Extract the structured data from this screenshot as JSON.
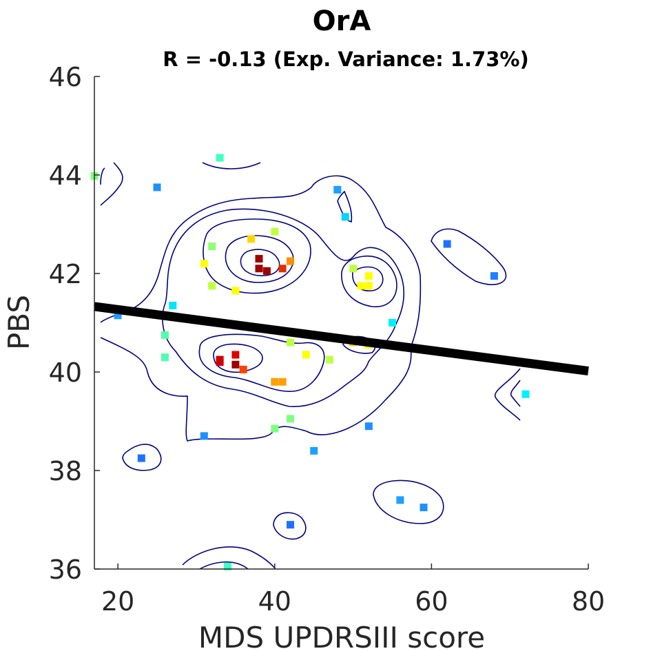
{
  "chart_data": {
    "type": "scatter",
    "title": "OrA",
    "subtitle": "R = -0.13 (Exp. Variance: 1.73%)",
    "xlabel": "MDS UPDRSIII score",
    "ylabel": "PBS",
    "xlim": [
      17,
      80
    ],
    "ylim": [
      36,
      46
    ],
    "xticks": [
      "20",
      "40",
      "60",
      "80"
    ],
    "yticks": [
      "36",
      "38",
      "40",
      "42",
      "44",
      "46"
    ],
    "fit_line": {
      "x": [
        17,
        80
      ],
      "y": [
        41.33,
        40.02
      ],
      "color": "#000000"
    },
    "points": [
      {
        "x": 17,
        "y": 43.98,
        "color": "#7fff7f"
      },
      {
        "x": 25,
        "y": 43.75,
        "color": "#1e90ff"
      },
      {
        "x": 33,
        "y": 44.35,
        "color": "#40ffbf"
      },
      {
        "x": 48,
        "y": 43.7,
        "color": "#1ea0ff"
      },
      {
        "x": 49,
        "y": 43.15,
        "color": "#00d4ff"
      },
      {
        "x": 62,
        "y": 42.6,
        "color": "#1e6fff"
      },
      {
        "x": 68,
        "y": 41.95,
        "color": "#1e7fff"
      },
      {
        "x": 32,
        "y": 42.55,
        "color": "#8fff6f"
      },
      {
        "x": 37,
        "y": 42.7,
        "color": "#ffd700"
      },
      {
        "x": 40,
        "y": 42.85,
        "color": "#bfff3f"
      },
      {
        "x": 31,
        "y": 42.2,
        "color": "#ffff00"
      },
      {
        "x": 38,
        "y": 42.3,
        "color": "#a00000"
      },
      {
        "x": 38,
        "y": 42.1,
        "color": "#a00000"
      },
      {
        "x": 39,
        "y": 42.05,
        "color": "#a00000"
      },
      {
        "x": 41,
        "y": 42.1,
        "color": "#e03000"
      },
      {
        "x": 42,
        "y": 42.25,
        "color": "#ff9000"
      },
      {
        "x": 32,
        "y": 41.75,
        "color": "#bfff3f"
      },
      {
        "x": 35,
        "y": 41.65,
        "color": "#ffff00"
      },
      {
        "x": 50,
        "y": 42.1,
        "color": "#bfff3f"
      },
      {
        "x": 51,
        "y": 41.75,
        "color": "#ffff00"
      },
      {
        "x": 52,
        "y": 41.75,
        "color": "#ffff00"
      },
      {
        "x": 52,
        "y": 41.95,
        "color": "#ffff00"
      },
      {
        "x": 20,
        "y": 41.15,
        "color": "#1ea0ff"
      },
      {
        "x": 27,
        "y": 41.35,
        "color": "#00e5ff"
      },
      {
        "x": 55,
        "y": 41.0,
        "color": "#00f0ff"
      },
      {
        "x": 26,
        "y": 40.75,
        "color": "#4fffaf"
      },
      {
        "x": 26,
        "y": 40.3,
        "color": "#4fffaf"
      },
      {
        "x": 42,
        "y": 40.6,
        "color": "#bfff3f"
      },
      {
        "x": 44,
        "y": 40.35,
        "color": "#ffff00"
      },
      {
        "x": 47,
        "y": 40.25,
        "color": "#bfff3f"
      },
      {
        "x": 50,
        "y": 40.6,
        "color": "#ffd000"
      },
      {
        "x": 52,
        "y": 40.55,
        "color": "#ffff00"
      },
      {
        "x": 33,
        "y": 40.25,
        "color": "#d00000"
      },
      {
        "x": 33,
        "y": 40.2,
        "color": "#d00000"
      },
      {
        "x": 35,
        "y": 40.35,
        "color": "#e00000"
      },
      {
        "x": 35,
        "y": 40.15,
        "color": "#a00000"
      },
      {
        "x": 36,
        "y": 40.05,
        "color": "#ff4000"
      },
      {
        "x": 40,
        "y": 39.8,
        "color": "#ffa000"
      },
      {
        "x": 41,
        "y": 39.8,
        "color": "#ffa000"
      },
      {
        "x": 72,
        "y": 39.55,
        "color": "#00f0ff"
      },
      {
        "x": 42,
        "y": 39.05,
        "color": "#7fff7f"
      },
      {
        "x": 40,
        "y": 38.85,
        "color": "#7fff7f"
      },
      {
        "x": 31,
        "y": 38.7,
        "color": "#1e90ff"
      },
      {
        "x": 52,
        "y": 38.9,
        "color": "#1e90ff"
      },
      {
        "x": 45,
        "y": 38.4,
        "color": "#1ea0ff"
      },
      {
        "x": 23,
        "y": 38.25,
        "color": "#1e6fff"
      },
      {
        "x": 56,
        "y": 37.4,
        "color": "#1ea0ff"
      },
      {
        "x": 59,
        "y": 37.25,
        "color": "#1e90ff"
      },
      {
        "x": 42,
        "y": 36.9,
        "color": "#1e6fff"
      },
      {
        "x": 34,
        "y": 36.05,
        "color": "#40ffbf"
      }
    ],
    "grid": false,
    "legend": "none"
  }
}
